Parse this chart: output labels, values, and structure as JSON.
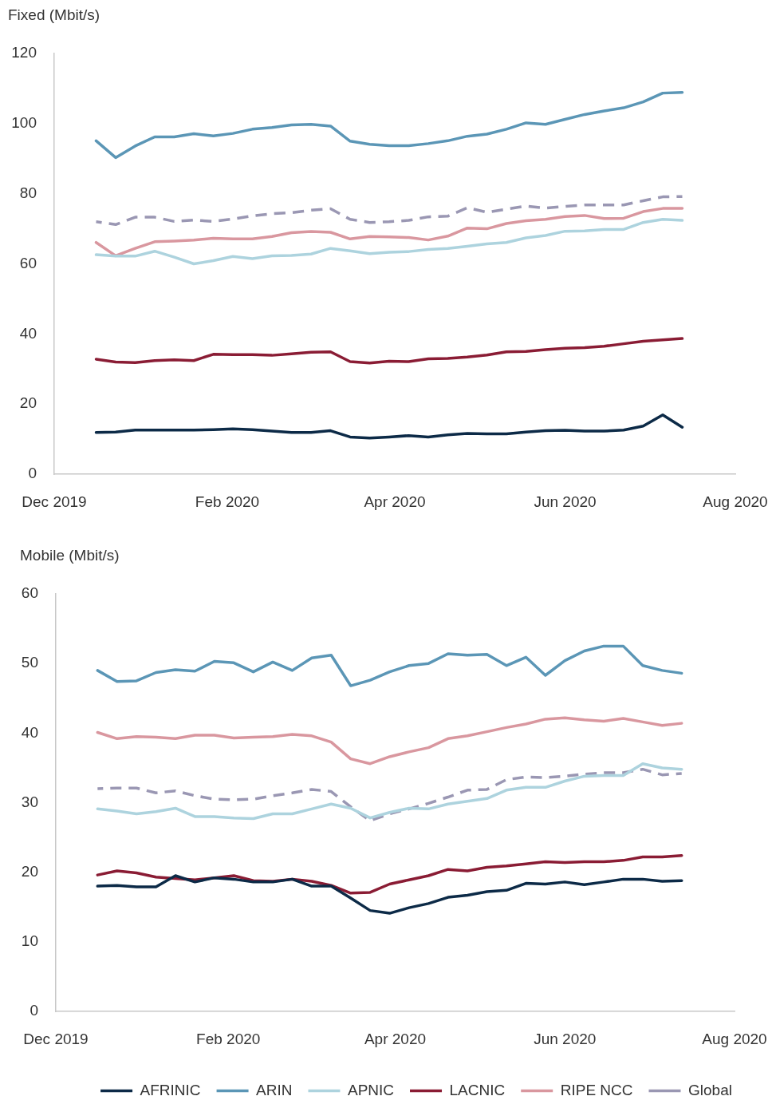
{
  "chart_data": [
    {
      "type": "line",
      "ylabel": "Fixed (Mbit/s)",
      "x": [
        "2019-12-16",
        "2019-12-23",
        "2019-12-30",
        "2020-01-06",
        "2020-01-13",
        "2020-01-20",
        "2020-01-27",
        "2020-02-03",
        "2020-02-10",
        "2020-02-17",
        "2020-02-24",
        "2020-03-02",
        "2020-03-09",
        "2020-03-16",
        "2020-03-23",
        "2020-03-30",
        "2020-04-06",
        "2020-04-13",
        "2020-04-20",
        "2020-04-27",
        "2020-05-04",
        "2020-05-11",
        "2020-05-18",
        "2020-05-25",
        "2020-06-01",
        "2020-06-08",
        "2020-06-15",
        "2020-06-22",
        "2020-06-29",
        "2020-07-06",
        "2020-07-13"
      ],
      "xlim": [
        "2019-12-01",
        "2020-08-01"
      ],
      "xticks": [
        {
          "value": "2019-12-01",
          "label": "Dec 2019"
        },
        {
          "value": "2020-02-01",
          "label": "Feb 2020"
        },
        {
          "value": "2020-04-01",
          "label": "Apr 2020"
        },
        {
          "value": "2020-06-01",
          "label": "Jun 2020"
        },
        {
          "value": "2020-08-01",
          "label": "Aug 2020"
        }
      ],
      "ylim": [
        0,
        120
      ],
      "yticks": [
        0,
        20,
        40,
        60,
        80,
        100,
        120
      ],
      "grid": false,
      "legend": false,
      "marker": "none",
      "line_style": "solid",
      "series": [
        {
          "color": "#0c2a47",
          "values": [
            11.9,
            12.0,
            12.6,
            12.6,
            12.6,
            12.6,
            12.7,
            12.9,
            12.7,
            12.3,
            11.9,
            11.9,
            12.4,
            10.6,
            10.3,
            10.6,
            11.0,
            10.6,
            11.2,
            11.6,
            11.5,
            11.5,
            12.0,
            12.4,
            12.5,
            12.3,
            12.3,
            12.6,
            13.7,
            16.9,
            13.4
          ]
        },
        {
          "color": "#5b96b6",
          "values": [
            95.1,
            90.3,
            93.6,
            96.2,
            96.2,
            97.1,
            96.5,
            97.2,
            98.4,
            98.9,
            99.6,
            99.8,
            99.3,
            95.0,
            94.1,
            93.7,
            93.7,
            94.3,
            95.1,
            96.4,
            97.0,
            98.4,
            100.2,
            99.8,
            101.2,
            102.6,
            103.6,
            104.5,
            106.2,
            108.7,
            108.9
          ]
        },
        {
          "color": "#add3de",
          "values": [
            62.6,
            62.2,
            62.2,
            63.6,
            61.9,
            60.0,
            60.9,
            62.1,
            61.5,
            62.3,
            62.4,
            62.8,
            64.4,
            63.7,
            62.9,
            63.3,
            63.5,
            64.1,
            64.4,
            65.0,
            65.7,
            66.1,
            67.4,
            68.1,
            69.3,
            69.4,
            69.8,
            69.8,
            71.8,
            72.7,
            72.4
          ]
        },
        {
          "color": "#8a1c34",
          "values": [
            32.8,
            32.0,
            31.8,
            32.4,
            32.6,
            32.4,
            34.2,
            34.1,
            34.1,
            33.9,
            34.3,
            34.8,
            34.9,
            32.1,
            31.7,
            32.2,
            32.1,
            32.9,
            33.0,
            33.4,
            34.0,
            34.9,
            35.0,
            35.5,
            35.9,
            36.1,
            36.5,
            37.2,
            37.9,
            38.3,
            38.7
          ]
        },
        {
          "color": "#d9979f",
          "values": [
            66.1,
            62.3,
            64.4,
            66.3,
            66.5,
            66.8,
            67.3,
            67.1,
            67.1,
            67.8,
            68.9,
            69.2,
            69.0,
            67.1,
            67.8,
            67.7,
            67.5,
            66.8,
            67.9,
            70.2,
            70.0,
            71.5,
            72.3,
            72.7,
            73.5,
            73.8,
            72.9,
            73.0,
            74.9,
            75.8,
            75.8
          ]
        },
        {
          "color": "#9a97b3",
          "line_style": "dashed",
          "values": [
            72.0,
            71.2,
            73.3,
            73.3,
            72.1,
            72.5,
            72.1,
            72.8,
            73.7,
            74.3,
            74.6,
            75.3,
            75.7,
            72.7,
            71.8,
            72.0,
            72.4,
            73.4,
            73.6,
            76.0,
            74.7,
            75.6,
            76.5,
            75.9,
            76.4,
            76.8,
            76.8,
            76.8,
            78.0,
            79.1,
            79.2
          ]
        }
      ]
    },
    {
      "type": "line",
      "ylabel": "Mobile (Mbit/s)",
      "x": [
        "2019-12-16",
        "2019-12-23",
        "2019-12-30",
        "2020-01-06",
        "2020-01-13",
        "2020-01-20",
        "2020-01-27",
        "2020-02-03",
        "2020-02-10",
        "2020-02-17",
        "2020-02-24",
        "2020-03-02",
        "2020-03-09",
        "2020-03-16",
        "2020-03-23",
        "2020-03-30",
        "2020-04-06",
        "2020-04-13",
        "2020-04-20",
        "2020-04-27",
        "2020-05-04",
        "2020-05-11",
        "2020-05-18",
        "2020-05-25",
        "2020-06-01",
        "2020-06-08",
        "2020-06-15",
        "2020-06-22",
        "2020-06-29",
        "2020-07-06",
        "2020-07-13"
      ],
      "xlim": [
        "2019-12-01",
        "2020-08-01"
      ],
      "xticks": [
        {
          "value": "2019-12-01",
          "label": "Dec 2019"
        },
        {
          "value": "2020-02-01",
          "label": "Feb 2020"
        },
        {
          "value": "2020-04-01",
          "label": "Apr 2020"
        },
        {
          "value": "2020-06-01",
          "label": "Jun 2020"
        },
        {
          "value": "2020-08-01",
          "label": "Aug 2020"
        }
      ],
      "ylim": [
        0,
        60
      ],
      "yticks": [
        0,
        10,
        20,
        30,
        40,
        50,
        60
      ],
      "grid": false,
      "legend": "bottom",
      "marker": "none",
      "line_style": "solid",
      "series": [
        {
          "name": "AFRINIC",
          "color": "#0c2a47",
          "values": [
            18.0,
            18.1,
            17.9,
            17.9,
            19.5,
            18.6,
            19.2,
            19.0,
            18.6,
            18.6,
            19.0,
            18.0,
            18.0,
            16.3,
            14.5,
            14.1,
            14.9,
            15.5,
            16.4,
            16.7,
            17.2,
            17.4,
            18.4,
            18.3,
            18.6,
            18.2,
            18.6,
            19.0,
            19.0,
            18.7,
            18.8
          ]
        },
        {
          "name": "ARIN",
          "color": "#5b96b6",
          "values": [
            49.0,
            47.4,
            47.5,
            48.7,
            49.1,
            48.9,
            50.3,
            50.1,
            48.8,
            50.2,
            49.0,
            50.8,
            51.2,
            46.8,
            47.6,
            48.8,
            49.7,
            50.0,
            51.4,
            51.2,
            51.3,
            49.7,
            50.9,
            48.3,
            50.4,
            51.8,
            52.5,
            52.5,
            49.7,
            49.0,
            48.6
          ]
        },
        {
          "name": "APNIC",
          "color": "#add3de",
          "values": [
            29.1,
            28.8,
            28.4,
            28.7,
            29.2,
            28.0,
            28.0,
            27.8,
            27.7,
            28.4,
            28.4,
            29.1,
            29.8,
            29.2,
            27.8,
            28.6,
            29.2,
            29.1,
            29.8,
            30.2,
            30.6,
            31.8,
            32.2,
            32.2,
            33.1,
            33.8,
            33.9,
            33.9,
            35.6,
            35.0,
            34.8
          ]
        },
        {
          "name": "LACNIC",
          "color": "#8a1c34",
          "values": [
            19.6,
            20.2,
            19.9,
            19.3,
            19.1,
            18.9,
            19.2,
            19.5,
            18.8,
            18.7,
            19.0,
            18.7,
            18.1,
            17.0,
            17.1,
            18.3,
            18.9,
            19.5,
            20.4,
            20.2,
            20.7,
            20.9,
            21.2,
            21.5,
            21.4,
            21.5,
            21.5,
            21.7,
            22.2,
            22.2,
            22.4
          ]
        },
        {
          "name": "RIPE NCC",
          "color": "#d9979f",
          "values": [
            40.1,
            39.2,
            39.5,
            39.4,
            39.2,
            39.7,
            39.7,
            39.3,
            39.4,
            39.5,
            39.8,
            39.6,
            38.7,
            36.3,
            35.6,
            36.6,
            37.3,
            37.9,
            39.2,
            39.6,
            40.2,
            40.8,
            41.3,
            42.0,
            42.2,
            41.9,
            41.7,
            42.1,
            41.6,
            41.1,
            41.4
          ]
        },
        {
          "name": "Global",
          "color": "#9a97b3",
          "line_style": "dashed",
          "values": [
            32.0,
            32.1,
            32.1,
            31.4,
            31.7,
            31.0,
            30.5,
            30.4,
            30.5,
            31.0,
            31.4,
            31.9,
            31.6,
            29.4,
            27.4,
            28.4,
            29.1,
            29.9,
            30.8,
            31.8,
            31.9,
            33.3,
            33.7,
            33.6,
            33.8,
            34.1,
            34.3,
            34.3,
            34.8,
            34.0,
            34.2
          ]
        }
      ]
    }
  ]
}
